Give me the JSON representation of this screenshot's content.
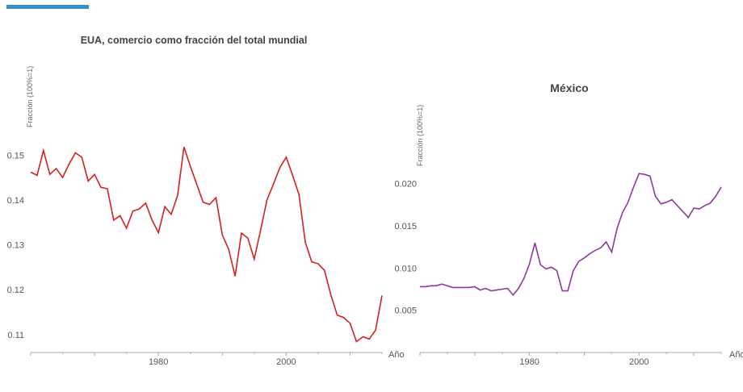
{
  "accent_color": "#3b8fc9",
  "chart_data": [
    {
      "type": "line",
      "title": "EUA, comercio como fracción del total mundial",
      "ylabel": "Fracción (100%=1)",
      "xlabel": "",
      "color": "#d62020",
      "xlim": [
        1960,
        2015
      ],
      "ylim": [
        0.106,
        0.154
      ],
      "x_ticks": [
        1980,
        2000
      ],
      "y_ticks": [
        0.11,
        0.12,
        0.13,
        0.14,
        0.15
      ],
      "y_tick_labels": [
        "0.11",
        "0.12",
        "0.13",
        "0.14",
        "0.15"
      ],
      "x": [
        1960,
        1961,
        1962,
        1963,
        1964,
        1965,
        1966,
        1967,
        1968,
        1969,
        1970,
        1971,
        1972,
        1973,
        1974,
        1975,
        1976,
        1977,
        1978,
        1979,
        1980,
        1981,
        1982,
        1983,
        1984,
        1985,
        1986,
        1987,
        1988,
        1989,
        1990,
        1991,
        1992,
        1993,
        1994,
        1995,
        1996,
        1997,
        1998,
        1999,
        2000,
        2001,
        2002,
        2003,
        2004,
        2005,
        2006,
        2007,
        2008,
        2009,
        2010,
        2011,
        2012,
        2013,
        2014,
        2015
      ],
      "values": [
        0.1462,
        0.1455,
        0.151,
        0.1457,
        0.147,
        0.145,
        0.148,
        0.1505,
        0.1495,
        0.1442,
        0.1457,
        0.1428,
        0.1425,
        0.1355,
        0.1365,
        0.1337,
        0.1375,
        0.138,
        0.1393,
        0.1355,
        0.1327,
        0.1385,
        0.1368,
        0.141,
        0.1518,
        0.1475,
        0.1435,
        0.1395,
        0.139,
        0.1405,
        0.1322,
        0.129,
        0.123,
        0.1326,
        0.1315,
        0.1268,
        0.1333,
        0.14,
        0.1435,
        0.1472,
        0.1495,
        0.1455,
        0.1412,
        0.1305,
        0.1262,
        0.1258,
        0.1243,
        0.1188,
        0.1143,
        0.1138,
        0.1125,
        0.1084,
        0.1095,
        0.109,
        0.111,
        0.1187
      ]
    },
    {
      "type": "line",
      "title": "México",
      "ylabel": "Fracción (100%=1)",
      "xlabel": "Año",
      "color": "#8e3a9d",
      "xlim": [
        1960,
        2015
      ],
      "ylim": [
        0.0,
        0.0215
      ],
      "x_ticks": [
        1980,
        2000
      ],
      "y_ticks": [
        0.005,
        0.01,
        0.015,
        0.02
      ],
      "y_tick_labels": [
        "0.005",
        "0.010",
        "0.015",
        "0.020"
      ],
      "x": [
        1960,
        1961,
        1962,
        1963,
        1964,
        1965,
        1966,
        1967,
        1968,
        1969,
        1970,
        1971,
        1972,
        1973,
        1974,
        1975,
        1976,
        1977,
        1978,
        1979,
        1980,
        1981,
        1982,
        1983,
        1984,
        1985,
        1986,
        1987,
        1988,
        1989,
        1990,
        1991,
        1992,
        1993,
        1994,
        1995,
        1996,
        1997,
        1998,
        1999,
        2000,
        2001,
        2002,
        2003,
        2004,
        2005,
        2006,
        2007,
        2008,
        2009,
        2010,
        2011,
        2012,
        2013,
        2014,
        2015
      ],
      "values": [
        0.0078,
        0.0078,
        0.0079,
        0.0079,
        0.0081,
        0.0079,
        0.0077,
        0.0077,
        0.0077,
        0.0077,
        0.0078,
        0.0074,
        0.0076,
        0.0073,
        0.0074,
        0.0075,
        0.0076,
        0.0068,
        0.0076,
        0.0088,
        0.0105,
        0.013,
        0.0104,
        0.0099,
        0.0101,
        0.0097,
        0.0073,
        0.0073,
        0.0097,
        0.0108,
        0.0112,
        0.0117,
        0.0121,
        0.0124,
        0.0131,
        0.0119,
        0.0147,
        0.0166,
        0.0178,
        0.0196,
        0.0212,
        0.0211,
        0.0209,
        0.0185,
        0.0176,
        0.0178,
        0.0181,
        0.0174,
        0.0167,
        0.016,
        0.0171,
        0.017,
        0.0174,
        0.0177,
        0.0185,
        0.0196
      ]
    }
  ]
}
